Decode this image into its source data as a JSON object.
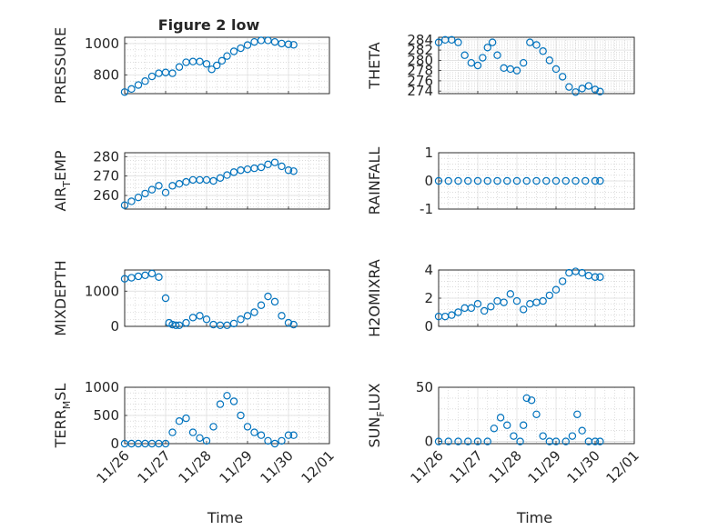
{
  "figure_title": "Figure 2 low",
  "chart_data": [
    {
      "type": "scatter",
      "ylabel": "PRESSURE",
      "title": "Figure 2 low",
      "xlabel": "",
      "xlim": [
        "11/26",
        "12/01"
      ],
      "ylim": [
        680,
        1040
      ],
      "yticks": [
        800,
        1000
      ],
      "xticks": [],
      "series": [
        {
          "x": [
            "11/26 00:00",
            "11/26 04:00",
            "11/26 08:00",
            "11/26 12:00",
            "11/26 16:00",
            "11/26 20:00",
            "11/27 00:00",
            "11/27 04:00",
            "11/27 08:00",
            "11/27 12:00",
            "11/27 16:00",
            "11/27 20:00",
            "11/28 00:00",
            "11/28 03:00",
            "11/28 06:00",
            "11/28 09:00",
            "11/28 12:00",
            "11/28 16:00",
            "11/28 20:00",
            "11/29 00:00",
            "11/29 04:00",
            "11/29 08:00",
            "11/29 12:00",
            "11/29 16:00",
            "11/29 20:00",
            "11/30 00:00",
            "11/30 03:00"
          ],
          "y": [
            690,
            710,
            735,
            760,
            790,
            810,
            815,
            810,
            850,
            880,
            885,
            885,
            870,
            835,
            860,
            890,
            920,
            950,
            970,
            990,
            1010,
            1020,
            1020,
            1010,
            1000,
            995,
            992
          ]
        }
      ]
    },
    {
      "type": "scatter",
      "ylabel": "THETA",
      "title": "",
      "xlabel": "",
      "xlim": [
        "11/26",
        "12/01"
      ],
      "ylim": [
        273.5,
        284.5
      ],
      "yticks": [
        274,
        276,
        278,
        280,
        282,
        284
      ],
      "xticks": [],
      "series": [
        {
          "x": [
            "11/26 00:00",
            "11/26 04:00",
            "11/26 08:00",
            "11/26 12:00",
            "11/26 16:00",
            "11/26 20:00",
            "11/27 00:00",
            "11/27 03:00",
            "11/27 06:00",
            "11/27 09:00",
            "11/27 12:00",
            "11/27 16:00",
            "11/27 20:00",
            "11/28 00:00",
            "11/28 04:00",
            "11/28 08:00",
            "11/28 12:00",
            "11/28 16:00",
            "11/28 20:00",
            "11/29 00:00",
            "11/29 04:00",
            "11/29 08:00",
            "11/29 12:00",
            "11/29 16:00",
            "11/29 20:00",
            "11/30 00:00",
            "11/30 03:00"
          ],
          "y": [
            283.5,
            284,
            284,
            283.5,
            281,
            279.5,
            279,
            280.5,
            282.5,
            283.5,
            281,
            278.5,
            278.3,
            278,
            279.5,
            283.5,
            283,
            281.8,
            280,
            278.3,
            276.8,
            274.8,
            273.8,
            274.5,
            275,
            274.3,
            273.9
          ]
        }
      ]
    },
    {
      "type": "scatter",
      "ylabel": "AIR_TEMP",
      "title": "",
      "xlabel": "",
      "xlim": [
        "11/26",
        "12/01"
      ],
      "ylim": [
        253,
        282
      ],
      "yticks": [
        260,
        270,
        280
      ],
      "xticks": [],
      "series": [
        {
          "x": [
            "11/26 00:00",
            "11/26 04:00",
            "11/26 08:00",
            "11/26 12:00",
            "11/26 16:00",
            "11/26 20:00",
            "11/27 00:00",
            "11/27 04:00",
            "11/27 08:00",
            "11/27 12:00",
            "11/27 16:00",
            "11/27 20:00",
            "11/28 00:00",
            "11/28 04:00",
            "11/28 08:00",
            "11/28 12:00",
            "11/28 16:00",
            "11/28 20:00",
            "11/29 00:00",
            "11/29 04:00",
            "11/29 08:00",
            "11/29 12:00",
            "11/29 16:00",
            "11/29 20:00",
            "11/30 00:00",
            "11/30 03:00"
          ],
          "y": [
            255,
            257,
            259,
            261,
            263,
            265,
            261.5,
            265,
            266,
            267,
            268,
            268,
            268,
            267.5,
            269,
            270.5,
            272,
            273,
            273.5,
            274,
            274.5,
            276,
            277,
            275,
            273,
            272.5
          ]
        }
      ]
    },
    {
      "type": "scatter",
      "ylabel": "RAINFALL",
      "title": "",
      "xlabel": "",
      "xlim": [
        "11/26",
        "12/01"
      ],
      "ylim": [
        -1,
        1
      ],
      "yticks": [
        -1,
        0,
        1
      ],
      "xticks": [],
      "series": [
        {
          "x": [
            "11/26 00:00",
            "11/26 06:00",
            "11/26 12:00",
            "11/26 18:00",
            "11/27 00:00",
            "11/27 06:00",
            "11/27 12:00",
            "11/27 18:00",
            "11/28 00:00",
            "11/28 06:00",
            "11/28 12:00",
            "11/28 18:00",
            "11/29 00:00",
            "11/29 06:00",
            "11/29 12:00",
            "11/29 18:00",
            "11/30 00:00",
            "11/30 03:00"
          ],
          "y": [
            0,
            0,
            0,
            0,
            0,
            0,
            0,
            0,
            0,
            0,
            0,
            0,
            0,
            0,
            0,
            0,
            0,
            0
          ]
        }
      ]
    },
    {
      "type": "scatter",
      "ylabel": "MIXDEPTH",
      "title": "",
      "xlabel": "",
      "xlim": [
        "11/26",
        "12/01"
      ],
      "ylim": [
        0,
        1600
      ],
      "yticks": [
        0,
        1000
      ],
      "xticks": [],
      "series": [
        {
          "x": [
            "11/26 00:00",
            "11/26 04:00",
            "11/26 08:00",
            "11/26 12:00",
            "11/26 16:00",
            "11/26 20:00",
            "11/27 00:00",
            "11/27 02:00",
            "11/27 04:00",
            "11/27 06:00",
            "11/27 08:00",
            "11/27 12:00",
            "11/27 16:00",
            "11/27 20:00",
            "11/28 00:00",
            "11/28 04:00",
            "11/28 08:00",
            "11/28 12:00",
            "11/28 16:00",
            "11/28 20:00",
            "11/29 00:00",
            "11/29 04:00",
            "11/29 08:00",
            "11/29 12:00",
            "11/29 16:00",
            "11/29 20:00",
            "11/30 00:00",
            "11/30 03:00"
          ],
          "y": [
            1350,
            1380,
            1420,
            1450,
            1500,
            1400,
            800,
            100,
            50,
            30,
            30,
            100,
            250,
            300,
            200,
            50,
            30,
            30,
            80,
            200,
            300,
            400,
            600,
            850,
            700,
            300,
            100,
            50
          ]
        }
      ]
    },
    {
      "type": "scatter",
      "ylabel": "H2OMIXRA",
      "title": "",
      "xlabel": "",
      "xlim": [
        "11/26",
        "12/01"
      ],
      "ylim": [
        0,
        4
      ],
      "yticks": [
        0,
        2,
        4
      ],
      "xticks": [],
      "series": [
        {
          "x": [
            "11/26 00:00",
            "11/26 04:00",
            "11/26 08:00",
            "11/26 12:00",
            "11/26 16:00",
            "11/26 20:00",
            "11/27 00:00",
            "11/27 04:00",
            "11/27 08:00",
            "11/27 12:00",
            "11/27 16:00",
            "11/27 20:00",
            "11/28 00:00",
            "11/28 04:00",
            "11/28 08:00",
            "11/28 12:00",
            "11/28 16:00",
            "11/28 20:00",
            "11/29 00:00",
            "11/29 04:00",
            "11/29 08:00",
            "11/29 12:00",
            "11/29 16:00",
            "11/29 20:00",
            "11/30 00:00",
            "11/30 03:00"
          ],
          "y": [
            0.7,
            0.7,
            0.8,
            1.0,
            1.3,
            1.3,
            1.6,
            1.1,
            1.4,
            1.8,
            1.7,
            2.3,
            1.8,
            1.2,
            1.6,
            1.7,
            1.8,
            2.2,
            2.6,
            3.2,
            3.8,
            3.9,
            3.8,
            3.6,
            3.5,
            3.5
          ]
        }
      ]
    },
    {
      "type": "scatter",
      "ylabel": "TERR_MSL",
      "title": "",
      "xlabel": "Time",
      "xlim": [
        "11/26",
        "12/01"
      ],
      "ylim": [
        0,
        1000
      ],
      "yticks": [
        0,
        500,
        1000
      ],
      "xticks": [
        "11/26",
        "11/27",
        "11/28",
        "11/29",
        "11/30",
        "12/01"
      ],
      "series": [
        {
          "x": [
            "11/26 00:00",
            "11/26 04:00",
            "11/26 08:00",
            "11/26 12:00",
            "11/26 16:00",
            "11/26 20:00",
            "11/27 00:00",
            "11/27 04:00",
            "11/27 08:00",
            "11/27 12:00",
            "11/27 16:00",
            "11/27 20:00",
            "11/28 00:00",
            "11/28 04:00",
            "11/28 08:00",
            "11/28 12:00",
            "11/28 16:00",
            "11/28 20:00",
            "11/29 00:00",
            "11/29 04:00",
            "11/29 08:00",
            "11/29 12:00",
            "11/29 16:00",
            "11/29 20:00",
            "11/30 00:00",
            "11/30 03:00"
          ],
          "y": [
            0,
            0,
            0,
            0,
            0,
            0,
            0,
            200,
            400,
            450,
            200,
            100,
            50,
            300,
            700,
            850,
            750,
            500,
            300,
            200,
            150,
            50,
            0,
            50,
            150,
            150
          ]
        }
      ]
    },
    {
      "type": "scatter",
      "ylabel": "SUN_FLUX",
      "title": "",
      "xlabel": "Time",
      "xlim": [
        "11/26",
        "12/01"
      ],
      "ylim": [
        -2,
        50
      ],
      "yticks": [
        0,
        50
      ],
      "xticks": [
        "11/26",
        "11/27",
        "11/28",
        "11/29",
        "11/30",
        "12/01"
      ],
      "series": [
        {
          "x": [
            "11/26 00:00",
            "11/26 06:00",
            "11/26 12:00",
            "11/26 18:00",
            "11/27 00:00",
            "11/27 06:00",
            "11/27 10:00",
            "11/27 14:00",
            "11/27 18:00",
            "11/27 22:00",
            "11/28 02:00",
            "11/28 04:00",
            "11/28 06:00",
            "11/28 09:00",
            "11/28 12:00",
            "11/28 16:00",
            "11/28 20:00",
            "11/29 00:00",
            "11/29 06:00",
            "11/29 10:00",
            "11/29 13:00",
            "11/29 16:00",
            "11/29 20:00",
            "11/30 00:00",
            "11/30 03:00"
          ],
          "y": [
            0,
            0,
            0,
            0,
            0,
            0,
            12,
            22,
            15,
            5,
            0,
            15,
            40,
            38,
            25,
            5,
            0,
            0,
            0,
            5,
            25,
            10,
            0,
            0,
            0
          ]
        }
      ]
    }
  ]
}
